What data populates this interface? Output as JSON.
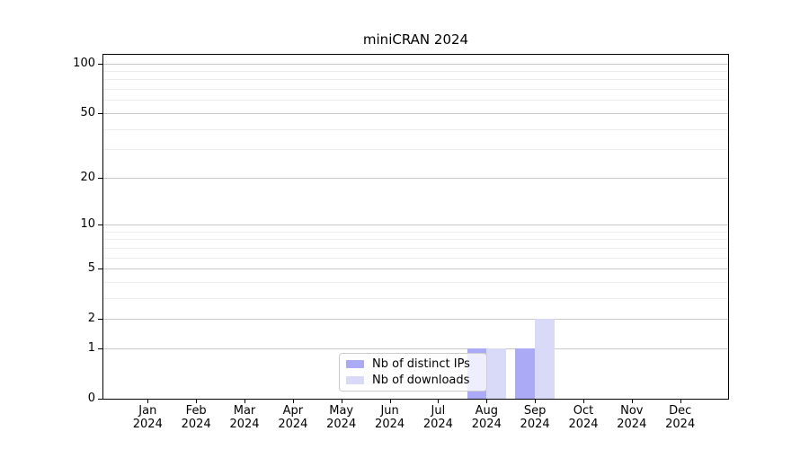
{
  "title": "miniCRAN 2024",
  "colors": {
    "ips_bar": "#aaaaf7",
    "downloads_bar": "#d9d9f8",
    "grid_major": "#c9c9c9",
    "grid_minor": "#ededed",
    "axis": "#000000",
    "text": "#000000",
    "legend_border": "#cccccc"
  },
  "legend": {
    "items": [
      {
        "label": "Nb of distinct IPs",
        "color_key": "ips_bar"
      },
      {
        "label": "Nb of downloads",
        "color_key": "downloads_bar"
      }
    ]
  },
  "chart_data": {
    "type": "bar",
    "title": "miniCRAN 2024",
    "categories": [
      "Jan 2024",
      "Feb 2024",
      "Mar 2024",
      "Apr 2024",
      "May 2024",
      "Jun 2024",
      "Jul 2024",
      "Aug 2024",
      "Sep 2024",
      "Oct 2024",
      "Nov 2024",
      "Dec 2024"
    ],
    "months": [
      "Jan",
      "Feb",
      "Mar",
      "Apr",
      "May",
      "Jun",
      "Jul",
      "Aug",
      "Sep",
      "Oct",
      "Nov",
      "Dec"
    ],
    "year": "2024",
    "series": [
      {
        "name": "Nb of distinct IPs",
        "values": [
          0,
          0,
          0,
          0,
          0,
          0,
          0,
          1,
          1,
          0,
          0,
          0
        ]
      },
      {
        "name": "Nb of downloads",
        "values": [
          0,
          0,
          0,
          0,
          0,
          0,
          0,
          1,
          2,
          0,
          0,
          0
        ]
      }
    ],
    "y_scale": "log1p",
    "y_major_ticks": [
      0,
      1,
      2,
      5,
      10,
      20,
      50,
      100
    ],
    "y_minor_ticks": [
      3,
      4,
      6,
      7,
      8,
      9,
      30,
      40,
      60,
      70,
      80,
      90
    ],
    "ylim": [
      0,
      114
    ],
    "xlabel": "",
    "ylabel": "",
    "grid": true,
    "legend_position": "lower-center-inside"
  }
}
